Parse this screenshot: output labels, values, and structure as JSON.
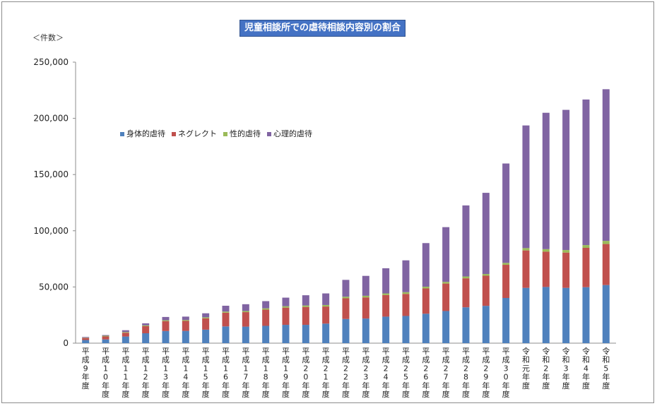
{
  "chart_data": {
    "type": "bar",
    "stacked": true,
    "title": "児童相談所での虐待相談内容別の割合",
    "unit_label": "＜件数＞",
    "ylim": [
      0,
      250000
    ],
    "yticks": [
      "0",
      "50,000",
      "100,000",
      "150,000",
      "200,000",
      "250,000"
    ],
    "ytick_values": [
      0,
      50000,
      100000,
      150000,
      200000,
      250000
    ],
    "grid": false,
    "legend_position": "upper-left inside plot",
    "categories": [
      "平成9年度",
      "平成10年度",
      "平成11年度",
      "平成12年度",
      "平成13年度",
      "平成14年度",
      "平成15年度",
      "平成16年度",
      "平成17年度",
      "平成18年度",
      "平成19年度",
      "平成20年度",
      "平成21年度",
      "平成22年度",
      "平成23年度",
      "平成24年度",
      "平成25年度",
      "平成26年度",
      "平成27年度",
      "平成28年度",
      "平成29年度",
      "平成30年度",
      "令和元年度",
      "令和2年度",
      "令和3年度",
      "令和4年度",
      "令和5年度"
    ],
    "series": [
      {
        "name": "身体的虐待",
        "color": "#4f81bd",
        "values": [
          2800,
          3300,
          5900,
          8800,
          10800,
          10900,
          12000,
          14900,
          14700,
          15400,
          16300,
          16300,
          17400,
          21500,
          21900,
          23600,
          24200,
          26200,
          28600,
          31900,
          33200,
          40200,
          49200,
          50000,
          49200,
          49800,
          51700
        ]
      },
      {
        "name": "ネグレクト",
        "color": "#c0504d",
        "values": [
          1800,
          2700,
          3400,
          6300,
          8800,
          8900,
          10100,
          12200,
          12900,
          14400,
          15300,
          15900,
          15200,
          18400,
          18800,
          19200,
          19600,
          22500,
          24400,
          25800,
          26800,
          29500,
          33300,
          31400,
          31400,
          35000,
          36500
        ]
      },
      {
        "name": "性的虐待",
        "color": "#9bbb59",
        "values": [
          300,
          600,
          600,
          750,
          800,
          820,
          880,
          1000,
          1050,
          1180,
          1290,
          1320,
          1350,
          1400,
          1460,
          1450,
          1580,
          1520,
          1520,
          1620,
          1540,
          1730,
          2080,
          2250,
          2250,
          2450,
          2800
        ]
      },
      {
        "name": "心理的虐待",
        "color": "#8064a2",
        "values": [
          600,
          600,
          1600,
          1800,
          2900,
          3000,
          3600,
          5200,
          6000,
          6400,
          7600,
          9100,
          10300,
          15000,
          17700,
          22400,
          28300,
          38800,
          48700,
          63200,
          72200,
          88400,
          109100,
          121300,
          124700,
          129500,
          134900
        ]
      }
    ]
  }
}
